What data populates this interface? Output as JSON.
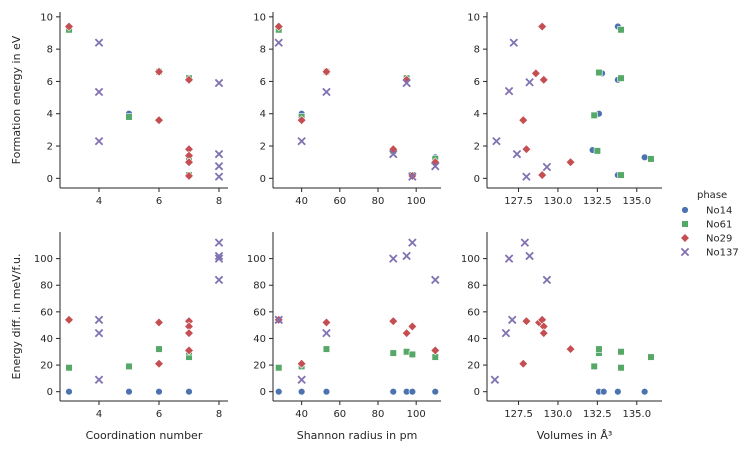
{
  "figure": {
    "legend_title": "phase"
  },
  "colors": {
    "No14": "#4c72b0",
    "No61": "#55a868",
    "No29": "#c44e52",
    "No137": "#8172b2"
  },
  "chart_data": [
    {
      "type": "scatter",
      "name": "formation-vs-coordination",
      "xlabel": "",
      "ylabel": "Formation energy in eV",
      "xlim": [
        2.7,
        8.3
      ],
      "ylim": [
        -0.6,
        10.3
      ],
      "xticks": [
        4,
        6,
        8
      ],
      "xticklabels": [
        "4",
        "6",
        "8"
      ],
      "yticks": [
        0,
        2,
        4,
        6,
        8,
        10
      ],
      "yticklabels": [
        "0",
        "2",
        "4",
        "6",
        "8",
        "10"
      ],
      "series": [
        {
          "name": "No14",
          "marker": "circle",
          "points": [
            [
              3,
              9.4
            ],
            [
              5,
              4.0
            ],
            [
              6,
              6.6
            ],
            [
              7,
              1.8
            ],
            [
              7,
              6.1
            ],
            [
              7,
              0.2
            ]
          ]
        },
        {
          "name": "No61",
          "marker": "square",
          "points": [
            [
              3,
              9.2
            ],
            [
              5,
              3.8
            ],
            [
              6,
              6.6
            ],
            [
              7,
              1.2
            ],
            [
              7,
              6.2
            ],
            [
              7,
              0.2
            ]
          ]
        },
        {
          "name": "No29",
          "marker": "diamond",
          "points": [
            [
              3,
              9.4
            ],
            [
              6,
              3.6
            ],
            [
              6,
              6.6
            ],
            [
              7,
              6.1
            ],
            [
              7,
              1.8
            ],
            [
              7,
              1.4
            ],
            [
              7,
              1.0
            ],
            [
              7,
              0.15
            ]
          ]
        },
        {
          "name": "No137",
          "marker": "x",
          "points": [
            [
              4,
              8.4
            ],
            [
              4,
              5.35
            ],
            [
              4,
              2.3
            ],
            [
              8,
              5.9
            ],
            [
              8,
              1.5
            ],
            [
              8,
              0.75
            ],
            [
              8,
              0.1
            ]
          ]
        }
      ]
    },
    {
      "type": "scatter",
      "name": "formation-vs-shannon",
      "xlabel": "",
      "ylabel": "",
      "xlim": [
        25,
        113
      ],
      "ylim": [
        -0.6,
        10.3
      ],
      "xticks": [
        40,
        60,
        80,
        100
      ],
      "xticklabels": [
        "40",
        "60",
        "80",
        "100"
      ],
      "yticks": [
        0,
        2,
        4,
        6,
        8,
        10
      ],
      "yticklabels": [
        "0",
        "2",
        "4",
        "6",
        "8",
        "10"
      ],
      "series": [
        {
          "name": "No14",
          "marker": "circle",
          "points": [
            [
              28,
              9.4
            ],
            [
              40,
              4.0
            ],
            [
              53,
              6.6
            ],
            [
              88,
              1.8
            ],
            [
              95,
              6.1
            ],
            [
              98,
              0.2
            ],
            [
              110,
              1.3
            ]
          ]
        },
        {
          "name": "No61",
          "marker": "square",
          "points": [
            [
              28,
              9.2
            ],
            [
              40,
              3.8
            ],
            [
              53,
              6.6
            ],
            [
              88,
              1.7
            ],
            [
              95,
              6.2
            ],
            [
              98,
              0.2
            ],
            [
              110,
              1.2
            ]
          ]
        },
        {
          "name": "No29",
          "marker": "diamond",
          "points": [
            [
              28,
              9.4
            ],
            [
              40,
              3.6
            ],
            [
              53,
              6.6
            ],
            [
              88,
              1.8
            ],
            [
              95,
              6.1
            ],
            [
              98,
              0.15
            ],
            [
              110,
              1.0
            ]
          ]
        },
        {
          "name": "No137",
          "marker": "x",
          "points": [
            [
              28,
              8.4
            ],
            [
              40,
              2.3
            ],
            [
              53,
              5.35
            ],
            [
              88,
              1.5
            ],
            [
              95,
              5.9
            ],
            [
              98,
              0.1
            ],
            [
              110,
              0.75
            ]
          ]
        }
      ]
    },
    {
      "type": "scatter",
      "name": "formation-vs-volume",
      "xlabel": "",
      "ylabel": "",
      "xlim": [
        125.5,
        136.6
      ],
      "ylim": [
        -0.6,
        10.3
      ],
      "xticks": [
        127.5,
        130.0,
        132.5,
        135.0
      ],
      "xticklabels": [
        "127.5",
        "130.0",
        "132.5",
        "135.0"
      ],
      "yticks": [
        0,
        2,
        4,
        6,
        8,
        10
      ],
      "yticklabels": [
        "0",
        "2",
        "4",
        "6",
        "8",
        "10"
      ],
      "series": [
        {
          "name": "No14",
          "marker": "circle",
          "points": [
            [
              132.6,
              4.0
            ],
            [
              133.8,
              9.4
            ],
            [
              133.8,
              6.1
            ],
            [
              133.8,
              0.2
            ],
            [
              132.8,
              6.5
            ],
            [
              135.5,
              1.3
            ],
            [
              132.2,
              1.75
            ]
          ]
        },
        {
          "name": "No61",
          "marker": "square",
          "points": [
            [
              132.3,
              3.9
            ],
            [
              132.6,
              6.55
            ],
            [
              134.0,
              9.2
            ],
            [
              134.0,
              6.2
            ],
            [
              134.0,
              0.2
            ],
            [
              135.9,
              1.2
            ],
            [
              132.5,
              1.7
            ]
          ]
        },
        {
          "name": "No29",
          "marker": "diamond",
          "points": [
            [
              129.0,
              9.4
            ],
            [
              127.8,
              3.6
            ],
            [
              128.6,
              6.5
            ],
            [
              129.1,
              6.1
            ],
            [
              130.8,
              1.0
            ],
            [
              128.0,
              1.8
            ],
            [
              129.0,
              0.2
            ]
          ]
        },
        {
          "name": "No137",
          "marker": "x",
          "points": [
            [
              126.1,
              2.3
            ],
            [
              127.2,
              8.4
            ],
            [
              127.4,
              1.5
            ],
            [
              126.9,
              5.4
            ],
            [
              128.2,
              5.95
            ],
            [
              129.3,
              0.7
            ],
            [
              128.0,
              0.1
            ]
          ]
        }
      ]
    },
    {
      "type": "scatter",
      "name": "energydiff-vs-coordination",
      "xlabel": "Coordination number",
      "ylabel": "Energy diff. in meV/f.u.",
      "xlim": [
        2.7,
        8.3
      ],
      "ylim": [
        -7,
        120
      ],
      "xticks": [
        4,
        6,
        8
      ],
      "xticklabels": [
        "4",
        "6",
        "8"
      ],
      "yticks": [
        0,
        20,
        40,
        60,
        80,
        100
      ],
      "yticklabels": [
        "0",
        "20",
        "40",
        "60",
        "80",
        "100"
      ],
      "series": [
        {
          "name": "No14",
          "marker": "circle",
          "points": [
            [
              3,
              0
            ],
            [
              5,
              0
            ],
            [
              6,
              0
            ],
            [
              7,
              0
            ]
          ]
        },
        {
          "name": "No61",
          "marker": "square",
          "points": [
            [
              3,
              18
            ],
            [
              5,
              19
            ],
            [
              6,
              32
            ],
            [
              7,
              26
            ],
            [
              7,
              30
            ]
          ]
        },
        {
          "name": "No29",
          "marker": "diamond",
          "points": [
            [
              3,
              54
            ],
            [
              6,
              52
            ],
            [
              6,
              21
            ],
            [
              7,
              53
            ],
            [
              7,
              49
            ],
            [
              7,
              44
            ],
            [
              7,
              31
            ]
          ]
        },
        {
          "name": "No137",
          "marker": "x",
          "points": [
            [
              4,
              54
            ],
            [
              4,
              44
            ],
            [
              4,
              9
            ],
            [
              8,
              112
            ],
            [
              8,
              102
            ],
            [
              8,
              100
            ],
            [
              8,
              84
            ]
          ]
        }
      ]
    },
    {
      "type": "scatter",
      "name": "energydiff-vs-shannon",
      "xlabel": "Shannon radius in pm",
      "ylabel": "",
      "xlim": [
        25,
        113
      ],
      "ylim": [
        -7,
        120
      ],
      "xticks": [
        40,
        60,
        80,
        100
      ],
      "xticklabels": [
        "40",
        "60",
        "80",
        "100"
      ],
      "yticks": [
        0,
        20,
        40,
        60,
        80,
        100
      ],
      "yticklabels": [
        "0",
        "20",
        "40",
        "60",
        "80",
        "100"
      ],
      "series": [
        {
          "name": "No14",
          "marker": "circle",
          "points": [
            [
              28,
              0
            ],
            [
              40,
              0
            ],
            [
              53,
              0
            ],
            [
              88,
              0
            ],
            [
              95,
              0
            ],
            [
              98,
              0
            ],
            [
              110,
              0
            ]
          ]
        },
        {
          "name": "No61",
          "marker": "square",
          "points": [
            [
              28,
              18
            ],
            [
              40,
              19
            ],
            [
              53,
              32
            ],
            [
              88,
              29
            ],
            [
              95,
              30
            ],
            [
              98,
              28
            ],
            [
              110,
              26
            ]
          ]
        },
        {
          "name": "No29",
          "marker": "diamond",
          "points": [
            [
              28,
              54
            ],
            [
              40,
              21
            ],
            [
              53,
              52
            ],
            [
              88,
              53
            ],
            [
              95,
              44
            ],
            [
              98,
              49
            ],
            [
              110,
              31
            ]
          ]
        },
        {
          "name": "No137",
          "marker": "x",
          "points": [
            [
              28,
              54
            ],
            [
              40,
              9
            ],
            [
              53,
              44
            ],
            [
              88,
              100
            ],
            [
              95,
              102
            ],
            [
              98,
              112
            ],
            [
              110,
              84
            ]
          ]
        }
      ]
    },
    {
      "type": "scatter",
      "name": "energydiff-vs-volume",
      "xlabel": "Volumes in Å³",
      "ylabel": "",
      "xlim": [
        125.5,
        136.6
      ],
      "ylim": [
        -7,
        120
      ],
      "xticks": [
        127.5,
        130.0,
        132.5,
        135.0
      ],
      "xticklabels": [
        "127.5",
        "130.0",
        "132.5",
        "135.0"
      ],
      "yticks": [
        0,
        20,
        40,
        60,
        80,
        100
      ],
      "yticklabels": [
        "0",
        "20",
        "40",
        "60",
        "80",
        "100"
      ],
      "series": [
        {
          "name": "No14",
          "marker": "circle",
          "points": [
            [
              132.6,
              0
            ],
            [
              132.9,
              0
            ],
            [
              133.8,
              0
            ],
            [
              135.5,
              0
            ]
          ]
        },
        {
          "name": "No61",
          "marker": "square",
          "points": [
            [
              132.3,
              19
            ],
            [
              132.6,
              29
            ],
            [
              132.6,
              32
            ],
            [
              134.0,
              30
            ],
            [
              134.0,
              18
            ],
            [
              135.9,
              26
            ]
          ]
        },
        {
          "name": "No29",
          "marker": "diamond",
          "points": [
            [
              127.8,
              21
            ],
            [
              128.0,
              53
            ],
            [
              128.8,
              52
            ],
            [
              129.0,
              54
            ],
            [
              129.1,
              49
            ],
            [
              129.1,
              44
            ],
            [
              130.8,
              32
            ]
          ]
        },
        {
          "name": "No137",
          "marker": "x",
          "points": [
            [
              126.0,
              9
            ],
            [
              126.7,
              44
            ],
            [
              127.1,
              54
            ],
            [
              126.9,
              100
            ],
            [
              127.9,
              112
            ],
            [
              128.2,
              102
            ],
            [
              129.3,
              84
            ]
          ]
        }
      ]
    }
  ]
}
